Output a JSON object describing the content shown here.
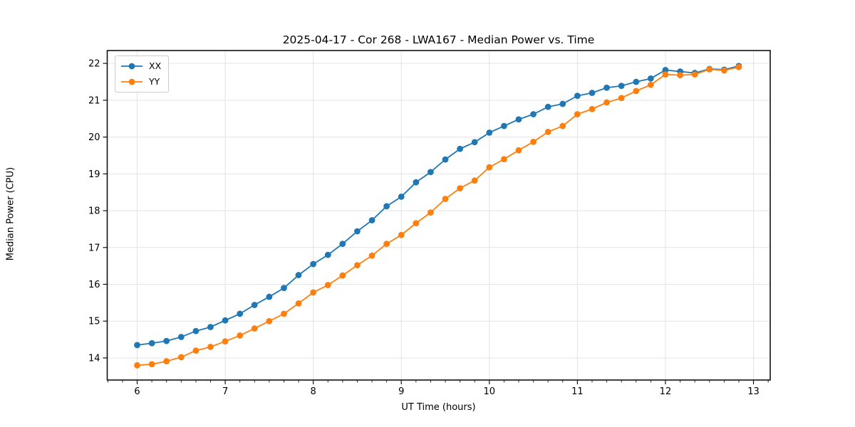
{
  "chart_data": {
    "type": "line",
    "title": "2025-04-17 - Cor 268 - LWA167 - Median Power vs. Time",
    "xlabel": "UT Time (hours)",
    "ylabel": "Median Power (CPU)",
    "xlim": [
      5.66,
      13.19
    ],
    "ylim": [
      13.4,
      22.35
    ],
    "xticks": [
      6,
      7,
      8,
      9,
      10,
      11,
      12,
      13
    ],
    "yticks": [
      14,
      15,
      16,
      17,
      18,
      19,
      20,
      21,
      22
    ],
    "x_minor_interval": 0.16667,
    "grid": true,
    "legend_position": "upper left",
    "grid_color": "#e3e3e3",
    "x": [
      6.0,
      6.167,
      6.333,
      6.5,
      6.667,
      6.833,
      7.0,
      7.167,
      7.333,
      7.5,
      7.667,
      7.833,
      8.0,
      8.167,
      8.333,
      8.5,
      8.667,
      8.833,
      9.0,
      9.167,
      9.333,
      9.5,
      9.667,
      9.833,
      10.0,
      10.167,
      10.333,
      10.5,
      10.667,
      10.833,
      11.0,
      11.167,
      11.333,
      11.5,
      11.667,
      11.833,
      12.0,
      12.167,
      12.333,
      12.5,
      12.667,
      12.833
    ],
    "series": [
      {
        "name": "XX",
        "color": "#1f77b4",
        "values": [
          14.35,
          14.4,
          14.46,
          14.57,
          14.73,
          14.84,
          15.02,
          15.2,
          15.44,
          15.66,
          15.9,
          16.25,
          16.55,
          16.8,
          17.1,
          17.44,
          17.74,
          18.12,
          18.38,
          18.77,
          19.05,
          19.39,
          19.68,
          19.86,
          20.12,
          20.3,
          20.48,
          20.62,
          20.82,
          20.9,
          21.12,
          21.2,
          21.34,
          21.39,
          21.5,
          21.59,
          21.82,
          21.78,
          21.74,
          21.85,
          21.83,
          21.93
        ]
      },
      {
        "name": "YY",
        "color": "#ff7f0e",
        "values": [
          13.8,
          13.83,
          13.91,
          14.02,
          14.2,
          14.3,
          14.45,
          14.61,
          14.8,
          15.0,
          15.2,
          15.48,
          15.78,
          15.98,
          16.24,
          16.52,
          16.78,
          17.1,
          17.34,
          17.66,
          17.95,
          18.32,
          18.61,
          18.82,
          19.18,
          19.4,
          19.64,
          19.87,
          20.14,
          20.3,
          20.62,
          20.76,
          20.94,
          21.06,
          21.25,
          21.42,
          21.7,
          21.68,
          21.7,
          21.84,
          21.81,
          21.9
        ]
      }
    ]
  }
}
